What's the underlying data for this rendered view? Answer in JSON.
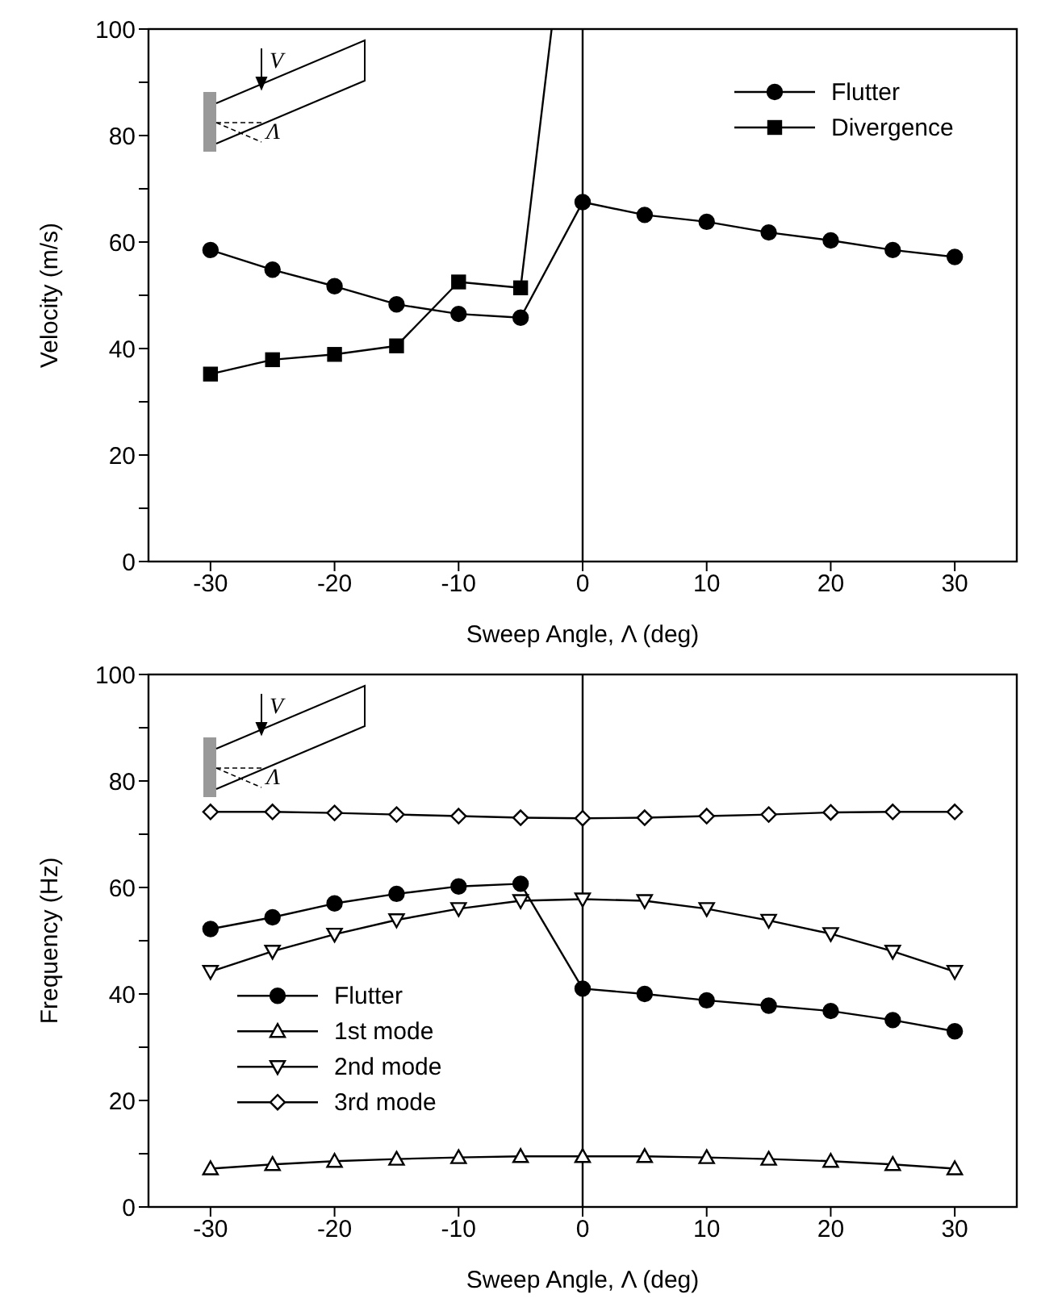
{
  "chart_data": [
    {
      "type": "line",
      "xlabel": "Sweep Angle, Λ (deg)",
      "ylabel": "Velocity (m/s)",
      "x": [
        -30,
        -25,
        -20,
        -15,
        -10,
        -5,
        0,
        5,
        10,
        15,
        20,
        25,
        30
      ],
      "series": [
        {
          "name": "Flutter",
          "color": "#000000",
          "marker": "circle",
          "values": [
            58.5,
            54.8,
            51.7,
            48.3,
            46.5,
            45.8,
            67.5,
            65.1,
            63.8,
            61.8,
            60.3,
            58.5,
            57.2
          ]
        },
        {
          "name": "Divergence",
          "color": "#000000",
          "marker": "square",
          "x": [
            -30,
            -25,
            -20,
            -15,
            -10,
            -5,
            -2.5
          ],
          "values": [
            35.2,
            37.9,
            38.9,
            40.5,
            52.5,
            51.4,
            100
          ]
        }
      ],
      "xlim": [
        -35,
        35
      ],
      "xticks": [
        -30,
        -20,
        -10,
        0,
        10,
        20,
        30
      ],
      "ylim": [
        0,
        100
      ],
      "yticks": [
        0,
        {
          "value": 10,
          "label": null
        },
        20,
        {
          "value": 30,
          "label": null
        },
        40,
        {
          "value": 50,
          "label": null
        },
        60,
        {
          "value": 70,
          "label": null
        },
        80,
        {
          "value": 90,
          "label": null
        },
        100
      ],
      "ref_lines": [
        {
          "axis": "x",
          "value": 0,
          "color": "#000000"
        }
      ],
      "legend": "top right",
      "grid": false,
      "line_style": "solid",
      "annotations": [
        "V",
        "Λ"
      ]
    },
    {
      "type": "line",
      "xlabel": "Sweep Angle, Λ (deg)",
      "ylabel": "Frequency (Hz)",
      "x": [
        -30,
        -25,
        -20,
        -15,
        -10,
        -5,
        0,
        5,
        10,
        15,
        20,
        25,
        30
      ],
      "series": [
        {
          "name": "Flutter",
          "color": "#000000",
          "marker": "circle",
          "values": [
            52.2,
            54.4,
            57.0,
            58.8,
            60.2,
            60.7,
            41.0,
            40.0,
            38.8,
            37.8,
            36.8,
            35.1,
            33.0
          ]
        },
        {
          "name": "1st mode",
          "color": "#000000",
          "marker": "triangle",
          "values": [
            7.2,
            8.0,
            8.6,
            9.0,
            9.3,
            9.5,
            9.5,
            9.5,
            9.3,
            9.0,
            8.6,
            8.0,
            7.2
          ]
        },
        {
          "name": "2nd mode",
          "color": "#000000",
          "marker": "triangle-down",
          "values": [
            44.2,
            48.0,
            51.2,
            53.9,
            56.0,
            57.5,
            57.8,
            57.5,
            56.0,
            53.8,
            51.3,
            48.0,
            44.2
          ]
        },
        {
          "name": "3rd mode",
          "color": "#000000",
          "marker": "diamond",
          "values": [
            74.2,
            74.2,
            74.0,
            73.7,
            73.4,
            73.1,
            73.0,
            73.1,
            73.4,
            73.7,
            74.1,
            74.2,
            74.2
          ]
        }
      ],
      "xlim": [
        -35,
        35
      ],
      "xticks": [
        -30,
        -20,
        -10,
        0,
        10,
        20,
        30
      ],
      "ylim": [
        0,
        100
      ],
      "yticks": [
        0,
        {
          "value": 10,
          "label": null
        },
        20,
        {
          "value": 30,
          "label": null
        },
        40,
        {
          "value": 50,
          "label": null
        },
        60,
        {
          "value": 70,
          "label": null
        },
        80,
        {
          "value": 90,
          "label": null
        },
        100
      ],
      "ref_lines": [
        {
          "axis": "x",
          "value": 0,
          "color": "#000000"
        }
      ],
      "legend": "bottom left",
      "grid": false,
      "line_style": "solid",
      "annotations": [
        "V",
        "Λ"
      ]
    }
  ]
}
